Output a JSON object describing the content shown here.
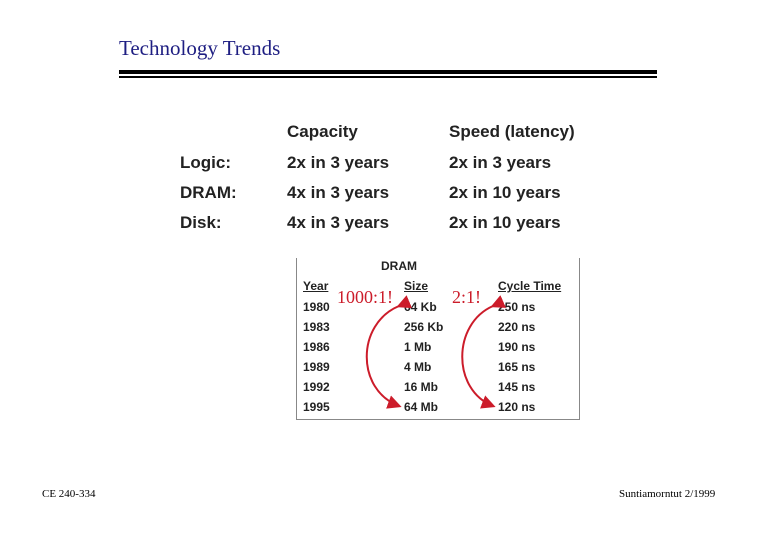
{
  "slide": {
    "title": "Technology Trends",
    "footer_left": "CE 240-334",
    "footer_right": "Suntiamorntut 2/1999"
  },
  "trends": {
    "capacity_header": "Capacity",
    "speed_header": "Speed (latency)",
    "rows": [
      {
        "label": "Logic:",
        "capacity": "2x  in  3 years",
        "speed": "2x  in 3 years"
      },
      {
        "label": "DRAM:",
        "capacity": "4x  in  3 years",
        "speed": "2x  in 10 years"
      },
      {
        "label": "Disk:",
        "capacity": "4x  in  3 years",
        "speed": "2x  in 10 years"
      }
    ]
  },
  "dram_table": {
    "title": "DRAM",
    "headers": {
      "year": "Year",
      "size": "Size",
      "cycle": "Cycle Time"
    },
    "rows": [
      {
        "year": "1980",
        "size": "64 Kb",
        "cycle": "250 ns"
      },
      {
        "year": "1983",
        "size": "256 Kb",
        "cycle": "220 ns"
      },
      {
        "year": "1986",
        "size": "1 Mb",
        "cycle": "190 ns"
      },
      {
        "year": "1989",
        "size": "4 Mb",
        "cycle": "165 ns"
      },
      {
        "year": "1992",
        "size": "16 Mb",
        "cycle": "145 ns"
      },
      {
        "year": "1995",
        "size": "64 Mb",
        "cycle": "120 ns"
      }
    ],
    "size_ratio": "1000:1!",
    "cycle_ratio": "2:1!",
    "accent_color": "#cc1c2a"
  }
}
